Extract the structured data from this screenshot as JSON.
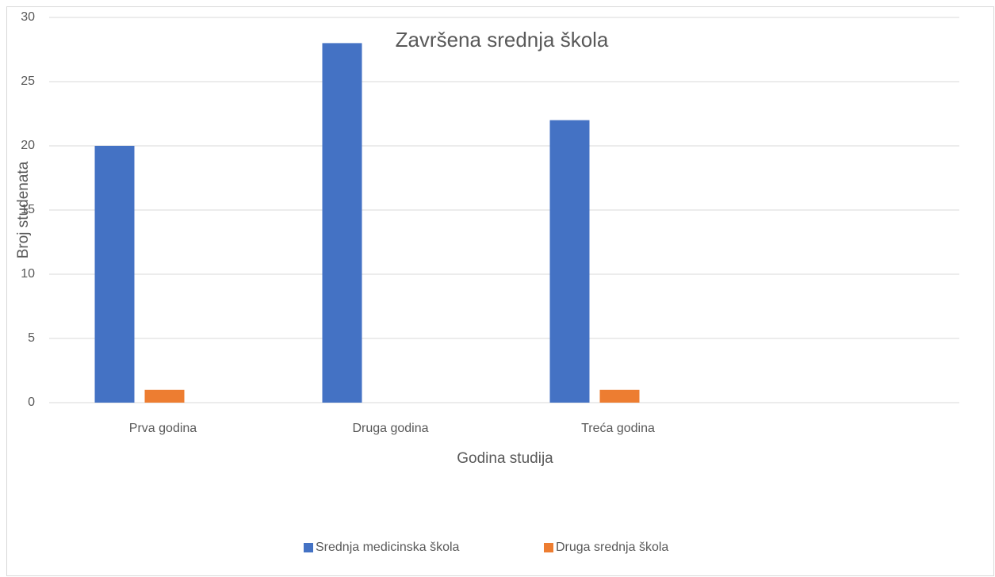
{
  "chart_data": {
    "type": "bar",
    "title": "Završena srednja škola",
    "x_label": "Godina studija",
    "y_label": "Broj studenata",
    "categories": [
      "Prva godina",
      "Druga godina",
      "Treća godina",
      null
    ],
    "series": [
      {
        "name": "Srednja medicinska škola",
        "color": "#4472c4",
        "values": [
          20,
          28,
          22,
          null
        ]
      },
      {
        "name": "Druga srednja škola",
        "color": "#ed7d31",
        "values": [
          1,
          0,
          1,
          null
        ]
      }
    ],
    "ylim": [
      0,
      30
    ],
    "yticks": [
      0,
      5,
      10,
      15,
      20,
      25,
      30
    ],
    "grid": true,
    "legend": "bottom"
  }
}
